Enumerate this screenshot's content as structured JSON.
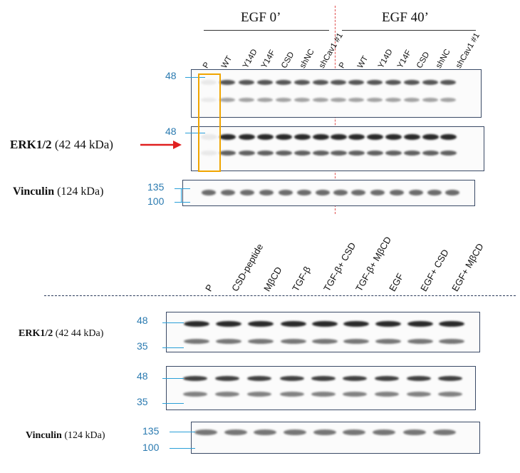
{
  "top": {
    "group_left": "EGF 0’",
    "group_right": "EGF 40’",
    "lanes": [
      "P",
      "WT",
      "Y14D",
      "Y14F",
      "CSD",
      "shNC",
      "shCav1 #1",
      "P",
      "WT",
      "Y14D",
      "Y14F",
      "CSD",
      "shNC",
      "shCav1 #1"
    ],
    "mw_48_a": "48",
    "mw_48_b": "48",
    "mw_135": "135",
    "mw_100": "100",
    "erk_label_bold": "ERK1/2",
    "erk_label_rest": " (42 44 kDa)",
    "vinculin_label_bold": "Vinculin",
    "vinculin_label_rest": " (124 kDa)"
  },
  "bottom": {
    "lanes": [
      "P",
      "CSD-peptide",
      "MβCD",
      "TGF-β",
      "TGF-β+ CSD",
      "TGF-β+ MβCD",
      "EGF",
      "EGF+ CSD",
      "EGF+ MβCD"
    ],
    "mw_48_a": "48",
    "mw_35_a": "35",
    "mw_48_b": "48",
    "mw_35_b": "35",
    "mw_135": "135",
    "mw_100": "100",
    "erk_label_bold": "ERK1/2",
    "erk_label_rest": " (42 44 kDa)",
    "vinculin_label_bold": "Vinculin",
    "vinculin_label_rest": " (124 kDa)"
  },
  "colors": {
    "frame": "#3a4a66",
    "marker_blue": "#2a7ab0",
    "highlight": "#f0a500",
    "arrow": "#e02020",
    "divider": "#e05050"
  }
}
